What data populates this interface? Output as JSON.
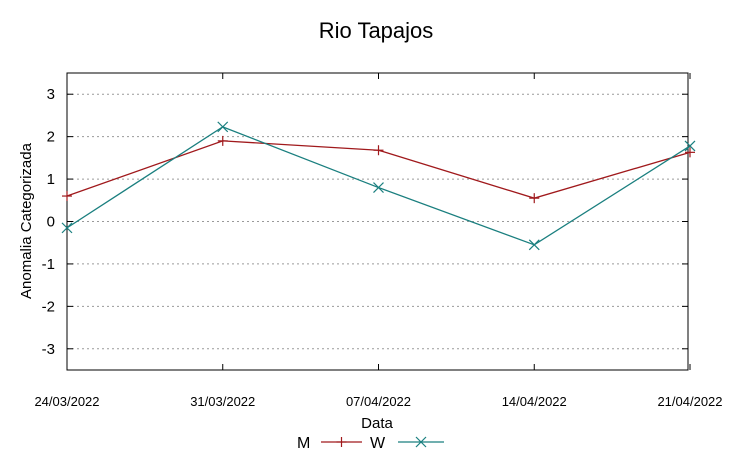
{
  "chart_data": {
    "type": "line",
    "title": "Rio Tapajos",
    "xlabel": "Data",
    "ylabel": "Anomalia Categorizada",
    "categories": [
      "24/03/2022",
      "31/03/2022",
      "07/04/2022",
      "14/04/2022",
      "21/04/2022"
    ],
    "ylim": [
      -3.5,
      3.5
    ],
    "yticks": [
      -3,
      -2,
      -1,
      0,
      1,
      2,
      3
    ],
    "grid": true,
    "legend_position": "bottom-center",
    "series": [
      {
        "name": "M",
        "values": [
          0.6,
          1.9,
          1.68,
          0.55,
          1.63
        ],
        "color": "#a0191c",
        "marker": "plus"
      },
      {
        "name": "W",
        "values": [
          -0.15,
          2.23,
          0.8,
          -0.55,
          1.78
        ],
        "color": "#1a7f7f",
        "marker": "cross"
      }
    ]
  }
}
